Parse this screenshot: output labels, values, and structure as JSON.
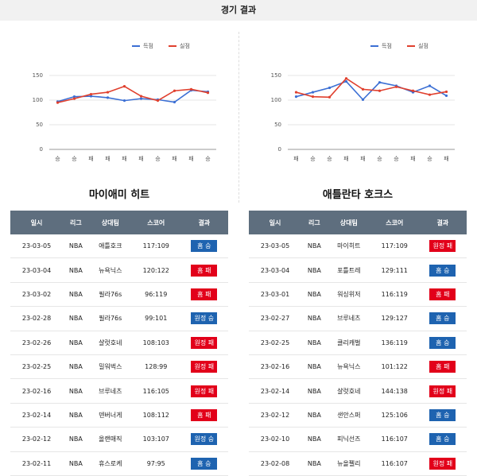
{
  "header": {
    "title": "경기 결과"
  },
  "chart_data": [
    {
      "type": "line",
      "categories": [
        "승",
        "승",
        "패",
        "패",
        "패",
        "패",
        "승",
        "패",
        "패",
        "승"
      ],
      "series": [
        {
          "name": "득점",
          "color": "#3b6fd4",
          "values": [
            97,
            107,
            108,
            105,
            99,
            103,
            101,
            96,
            120,
            117
          ]
        },
        {
          "name": "실점",
          "color": "#e0402e",
          "values": [
            95,
            103,
            112,
            116,
            128,
            108,
            99,
            119,
            122,
            115
          ]
        }
      ],
      "ylim": [
        0,
        150
      ],
      "yticks": [
        0,
        50,
        100,
        150
      ],
      "grid": true,
      "legend": "top-right"
    },
    {
      "type": "line",
      "categories": [
        "패",
        "승",
        "승",
        "패",
        "패",
        "승",
        "승",
        "패",
        "승",
        "패"
      ],
      "series": [
        {
          "name": "득점",
          "color": "#3b6fd4",
          "values": [
            107,
            116,
            125,
            138,
            101,
            136,
            129,
            116,
            129,
            109
          ]
        },
        {
          "name": "실점",
          "color": "#e0402e",
          "values": [
            116,
            107,
            106,
            144,
            122,
            119,
            127,
            119,
            111,
            117
          ]
        }
      ],
      "ylim": [
        0,
        150
      ],
      "yticks": [
        0,
        50,
        100,
        150
      ],
      "grid": true,
      "legend": "top-right"
    }
  ],
  "teams": [
    {
      "name": "마이애미 히트",
      "table": {
        "columns": [
          "일시",
          "리그",
          "상대팀",
          "스코어",
          "결과"
        ],
        "rows": [
          [
            "23-03-05",
            "NBA",
            "애틀호크",
            "117:109",
            "홈 승"
          ],
          [
            "23-03-04",
            "NBA",
            "뉴욕닉스",
            "120:122",
            "홈 패"
          ],
          [
            "23-03-02",
            "NBA",
            "필라76s",
            "96:119",
            "홈 패"
          ],
          [
            "23-02-28",
            "NBA",
            "필라76s",
            "99:101",
            "원정 승"
          ],
          [
            "23-02-26",
            "NBA",
            "샬럿호네",
            "108:103",
            "원정 패"
          ],
          [
            "23-02-25",
            "NBA",
            "밀워벅스",
            "128:99",
            "원정 패"
          ],
          [
            "23-02-16",
            "NBA",
            "브루네츠",
            "116:105",
            "원정 패"
          ],
          [
            "23-02-14",
            "NBA",
            "덴버너게",
            "108:112",
            "홈 패"
          ],
          [
            "23-02-12",
            "NBA",
            "올랜매직",
            "103:107",
            "원정 승"
          ],
          [
            "23-02-11",
            "NBA",
            "휴스로케",
            "97:95",
            "홈 승"
          ]
        ],
        "badge_colors": [
          "#1e63b0",
          "#e2001a",
          "#e2001a",
          "#1e63b0",
          "#e2001a",
          "#e2001a",
          "#e2001a",
          "#e2001a",
          "#1e63b0",
          "#1e63b0"
        ]
      }
    },
    {
      "name": "애틀란타 호크스",
      "table": {
        "columns": [
          "일시",
          "리그",
          "상대팀",
          "스코어",
          "결과"
        ],
        "rows": [
          [
            "23-03-05",
            "NBA",
            "마이히트",
            "117:109",
            "원정 패"
          ],
          [
            "23-03-04",
            "NBA",
            "포틀트레",
            "129:111",
            "홈 승"
          ],
          [
            "23-03-01",
            "NBA",
            "워싱위저",
            "116:119",
            "홈 패"
          ],
          [
            "23-02-27",
            "NBA",
            "브루네츠",
            "129:127",
            "홈 승"
          ],
          [
            "23-02-25",
            "NBA",
            "클리캐벌",
            "136:119",
            "홈 승"
          ],
          [
            "23-02-16",
            "NBA",
            "뉴욕닉스",
            "101:122",
            "홈 패"
          ],
          [
            "23-02-14",
            "NBA",
            "샬럿호네",
            "144:138",
            "원정 패"
          ],
          [
            "23-02-12",
            "NBA",
            "샌안스퍼",
            "125:106",
            "홈 승"
          ],
          [
            "23-02-10",
            "NBA",
            "피닉선즈",
            "116:107",
            "홈 승"
          ],
          [
            "23-02-08",
            "NBA",
            "뉴올펠리",
            "116:107",
            "원정 패"
          ]
        ],
        "badge_colors": [
          "#e2001a",
          "#1e63b0",
          "#e2001a",
          "#1e63b0",
          "#1e63b0",
          "#e2001a",
          "#e2001a",
          "#1e63b0",
          "#1e63b0",
          "#e2001a"
        ]
      }
    }
  ]
}
